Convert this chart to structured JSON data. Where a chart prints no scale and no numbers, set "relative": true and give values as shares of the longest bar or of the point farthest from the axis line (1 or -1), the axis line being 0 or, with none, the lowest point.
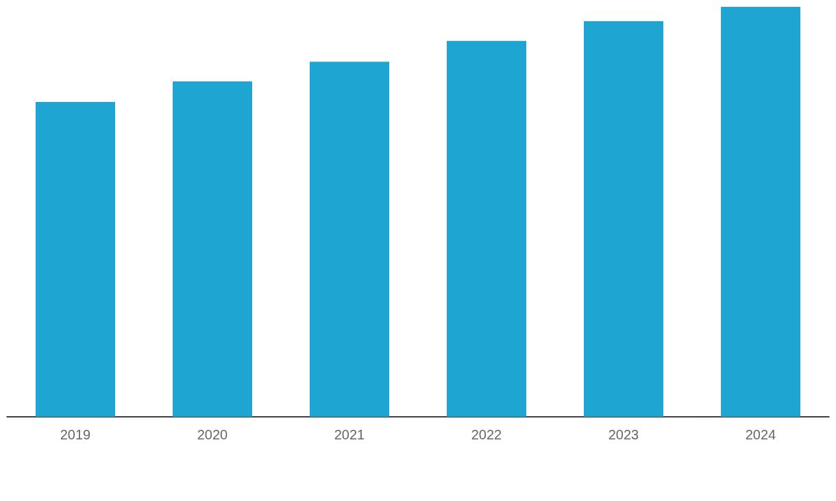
{
  "chart_data": {
    "type": "bar",
    "relative": true,
    "categories": [
      "2019",
      "2020",
      "2021",
      "2022",
      "2023",
      "2024"
    ],
    "values": [
      0.768,
      0.818,
      0.866,
      0.917,
      0.965,
      1
    ],
    "color": "#1fa5d1"
  }
}
